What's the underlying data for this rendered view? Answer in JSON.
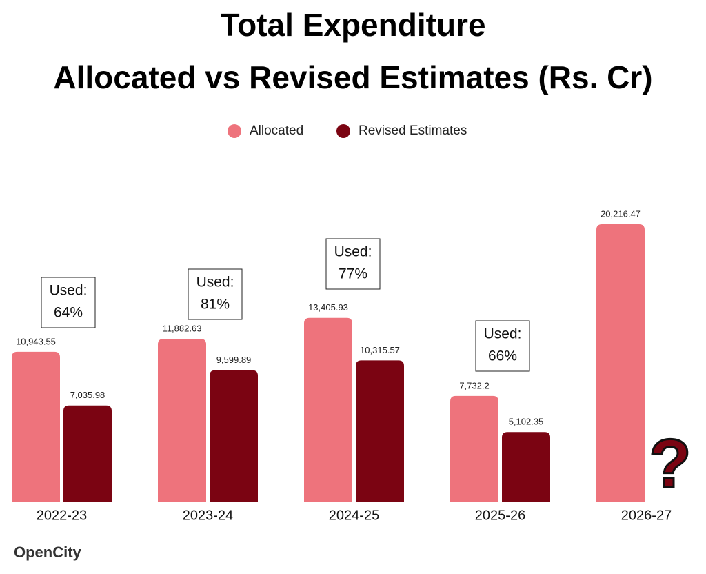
{
  "chart_data": {
    "type": "bar",
    "title": "Total Expenditure",
    "subtitle": "Allocated vs Revised Estimates (Rs. Cr)",
    "categories": [
      "2022-23",
      "2023-24",
      "2024-25",
      "2025-26",
      "2026-27"
    ],
    "series": [
      {
        "name": "Allocated",
        "color": "#ee737c",
        "values": [
          10943.55,
          11882.63,
          13405.93,
          7732.2,
          20216.47
        ],
        "value_labels": [
          "10,943.55",
          "11,882.63",
          "13,405.93",
          "7,732.2",
          "20,216.47"
        ]
      },
      {
        "name": "Revised Estimates",
        "color": "#7b0412",
        "values": [
          7035.98,
          9599.89,
          10315.57,
          5102.35,
          null
        ],
        "value_labels": [
          "7,035.98",
          "9,599.89",
          "10,315.57",
          "5,102.35",
          null
        ]
      }
    ],
    "annotations": [
      [
        "Used:",
        "64%"
      ],
      [
        "Used:",
        "81%"
      ],
      [
        "Used:",
        "77%"
      ],
      [
        "Used:",
        "66%"
      ]
    ],
    "unknown_marker": "?",
    "logo": "OpenCity"
  }
}
